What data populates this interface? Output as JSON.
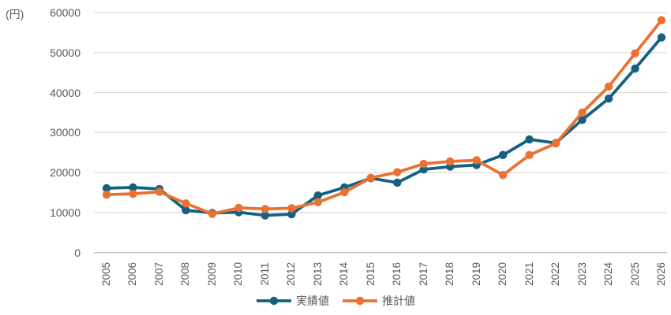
{
  "chart_data": {
    "type": "line",
    "title": "",
    "y_axis_unit_label": "(円)",
    "xlabel": "",
    "ylabel": "",
    "ylim": [
      0,
      60000
    ],
    "yticks": [
      0,
      10000,
      20000,
      30000,
      40000,
      50000,
      60000
    ],
    "grid": "horizontal-only",
    "legend_position": "bottom-center",
    "marker": "circle",
    "categories": [
      "2005",
      "2006",
      "2007",
      "2008",
      "2009",
      "2010",
      "2011",
      "2012",
      "2013",
      "2014",
      "2015",
      "2016",
      "2017",
      "2018",
      "2019",
      "2020",
      "2021",
      "2022",
      "2023",
      "2024",
      "2025",
      "2026"
    ],
    "series": [
      {
        "name": "実績値",
        "color": "#156082",
        "values": [
          16100,
          16300,
          15900,
          10600,
          9900,
          10100,
          9300,
          9600,
          14300,
          16300,
          18600,
          17500,
          20800,
          21500,
          21900,
          24400,
          28300,
          27400,
          33200,
          38500,
          46000,
          53800
        ]
      },
      {
        "name": "推計値",
        "color": "#E97132",
        "values": [
          14500,
          14700,
          15200,
          12300,
          9700,
          11200,
          10900,
          11100,
          12600,
          15100,
          18700,
          20100,
          22200,
          22800,
          23100,
          19400,
          24400,
          27300,
          35000,
          41500,
          49800,
          58100
        ]
      }
    ]
  },
  "colors": {
    "background": "#FFFFFF",
    "gridline": "#D9D9D9",
    "axis_line": "#BFBFBF",
    "tick_label": "#595959",
    "legend_text": "#595959"
  }
}
